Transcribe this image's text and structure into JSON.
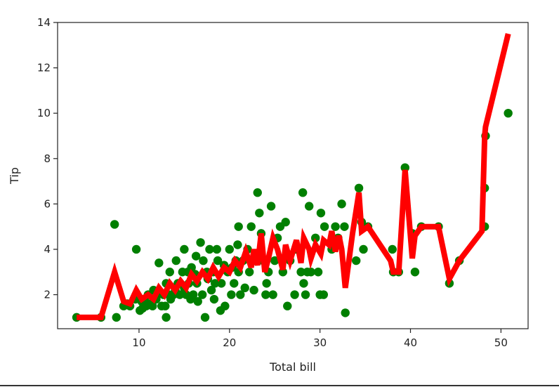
{
  "chart_data": {
    "type": "scatter",
    "xlabel": "Total bill",
    "ylabel": "Tip",
    "xlim": [
      1.0,
      53.0
    ],
    "ylim": [
      0.5,
      14.0
    ],
    "xticks": [
      10,
      20,
      30,
      40,
      50
    ],
    "yticks": [
      2,
      4,
      6,
      8,
      10,
      12,
      14
    ],
    "grid": false,
    "colors": {
      "points": "#007f00",
      "line": "#ff0000",
      "axes": "#222222"
    },
    "series": [
      {
        "type": "scatter",
        "points": [
          [
            3.1,
            1.0
          ],
          [
            5.8,
            1.0
          ],
          [
            7.3,
            5.1
          ],
          [
            7.5,
            1.0
          ],
          [
            8.3,
            1.5
          ],
          [
            8.7,
            1.6
          ],
          [
            9.0,
            1.5
          ],
          [
            9.6,
            1.8
          ],
          [
            9.7,
            4.0
          ],
          [
            10.1,
            1.3
          ],
          [
            10.3,
            1.7
          ],
          [
            10.4,
            1.4
          ],
          [
            10.6,
            1.8
          ],
          [
            10.8,
            1.5
          ],
          [
            11.0,
            2.0
          ],
          [
            11.2,
            1.6
          ],
          [
            11.5,
            1.5
          ],
          [
            11.6,
            2.2
          ],
          [
            11.9,
            1.8
          ],
          [
            12.0,
            2.0
          ],
          [
            12.2,
            3.4
          ],
          [
            12.5,
            1.5
          ],
          [
            12.7,
            2.0
          ],
          [
            12.9,
            1.5
          ],
          [
            13.0,
            1.0
          ],
          [
            13.0,
            2.5
          ],
          [
            13.3,
            2.0
          ],
          [
            13.4,
            3.0
          ],
          [
            13.5,
            1.8
          ],
          [
            13.8,
            2.0
          ],
          [
            14.0,
            2.2
          ],
          [
            14.1,
            3.5
          ],
          [
            14.3,
            2.5
          ],
          [
            14.5,
            2.0
          ],
          [
            14.8,
            3.0
          ],
          [
            15.0,
            2.3
          ],
          [
            15.0,
            4.0
          ],
          [
            15.2,
            2.0
          ],
          [
            15.4,
            3.0
          ],
          [
            15.5,
            2.5
          ],
          [
            15.7,
            1.8
          ],
          [
            15.8,
            3.2
          ],
          [
            16.0,
            2.0
          ],
          [
            16.2,
            2.9
          ],
          [
            16.3,
            3.7
          ],
          [
            16.4,
            2.5
          ],
          [
            16.5,
            1.7
          ],
          [
            16.8,
            4.3
          ],
          [
            17.0,
            2.0
          ],
          [
            17.1,
            3.5
          ],
          [
            17.3,
            1.0
          ],
          [
            17.5,
            3.0
          ],
          [
            17.6,
            2.7
          ],
          [
            17.8,
            4.0
          ],
          [
            18.0,
            2.2
          ],
          [
            18.2,
            3.0
          ],
          [
            18.3,
            1.8
          ],
          [
            18.4,
            2.5
          ],
          [
            18.6,
            4.0
          ],
          [
            18.7,
            3.5
          ],
          [
            19.0,
            1.3
          ],
          [
            19.1,
            2.5
          ],
          [
            19.4,
            3.3
          ],
          [
            19.5,
            1.5
          ],
          [
            19.8,
            3.0
          ],
          [
            20.0,
            4.0
          ],
          [
            20.2,
            2.0
          ],
          [
            20.3,
            3.2
          ],
          [
            20.5,
            2.5
          ],
          [
            20.7,
            3.5
          ],
          [
            20.9,
            4.2
          ],
          [
            21.0,
            5.0
          ],
          [
            21.0,
            3.0
          ],
          [
            21.2,
            2.0
          ],
          [
            21.5,
            3.5
          ],
          [
            21.7,
            2.3
          ],
          [
            22.0,
            4.0
          ],
          [
            22.2,
            3.0
          ],
          [
            22.4,
            5.0
          ],
          [
            22.7,
            2.2
          ],
          [
            22.8,
            3.5
          ],
          [
            23.1,
            6.5
          ],
          [
            23.3,
            5.6
          ],
          [
            23.5,
            4.7
          ],
          [
            23.7,
            3.5
          ],
          [
            24.0,
            2.0
          ],
          [
            24.1,
            2.5
          ],
          [
            24.3,
            3.0
          ],
          [
            24.6,
            5.9
          ],
          [
            24.8,
            2.0
          ],
          [
            25.0,
            3.5
          ],
          [
            25.3,
            4.5
          ],
          [
            25.6,
            5.0
          ],
          [
            25.9,
            3.0
          ],
          [
            26.2,
            5.2
          ],
          [
            26.4,
            1.5
          ],
          [
            26.7,
            3.5
          ],
          [
            27.2,
            2.0
          ],
          [
            27.4,
            4.0
          ],
          [
            27.9,
            3.0
          ],
          [
            28.1,
            6.5
          ],
          [
            28.2,
            2.5
          ],
          [
            28.4,
            2.0
          ],
          [
            28.6,
            3.0
          ],
          [
            28.8,
            5.9
          ],
          [
            29.0,
            3.0
          ],
          [
            29.5,
            4.5
          ],
          [
            29.8,
            3.0
          ],
          [
            30.0,
            2.0
          ],
          [
            30.1,
            5.6
          ],
          [
            30.4,
            2.0
          ],
          [
            30.5,
            5.0
          ],
          [
            31.3,
            4.0
          ],
          [
            31.7,
            5.0
          ],
          [
            32.0,
            4.5
          ],
          [
            32.4,
            6.0
          ],
          [
            32.7,
            5.0
          ],
          [
            32.8,
            1.2
          ],
          [
            34.0,
            3.5
          ],
          [
            34.3,
            6.7
          ],
          [
            34.6,
            5.2
          ],
          [
            34.8,
            4.0
          ],
          [
            35.3,
            5.0
          ],
          [
            38.0,
            4.0
          ],
          [
            38.1,
            3.0
          ],
          [
            38.7,
            3.0
          ],
          [
            39.4,
            7.6
          ],
          [
            40.2,
            4.7
          ],
          [
            40.5,
            3.0
          ],
          [
            41.2,
            5.0
          ],
          [
            43.1,
            5.0
          ],
          [
            44.3,
            2.5
          ],
          [
            45.4,
            3.5
          ],
          [
            48.2,
            5.0
          ],
          [
            48.2,
            6.7
          ],
          [
            48.3,
            9.0
          ],
          [
            50.8,
            10.0
          ]
        ]
      },
      {
        "type": "line",
        "x": [
          3.1,
          5.8,
          7.3,
          8.3,
          9.0,
          9.7,
          10.3,
          11.0,
          11.6,
          12.2,
          12.8,
          13.4,
          14.0,
          14.6,
          15.2,
          15.8,
          16.4,
          17.0,
          17.6,
          18.2,
          18.8,
          19.4,
          20.0,
          20.6,
          21.2,
          21.8,
          22.4,
          22.7,
          23.1,
          23.5,
          23.9,
          24.3,
          24.8,
          25.3,
          25.9,
          26.2,
          26.7,
          27.4,
          27.9,
          28.2,
          28.8,
          29.0,
          29.5,
          30.1,
          30.4,
          31.0,
          31.3,
          31.7,
          32.1,
          32.4,
          32.8,
          33.6,
          34.3,
          34.6,
          35.3,
          37.8,
          38.1,
          38.7,
          39.4,
          40.2,
          40.5,
          41.2,
          43.1,
          44.3,
          45.4,
          47.9,
          48.2,
          48.3,
          50.8
        ],
        "y": [
          1.0,
          1.0,
          3.0,
          1.7,
          1.6,
          2.2,
          1.8,
          2.0,
          1.8,
          2.3,
          2.0,
          2.5,
          2.2,
          2.6,
          2.3,
          2.9,
          2.6,
          3.0,
          2.7,
          3.2,
          2.8,
          3.2,
          3.0,
          3.5,
          3.2,
          3.9,
          3.2,
          4.0,
          3.3,
          4.7,
          3.0,
          3.6,
          4.5,
          4.0,
          3.1,
          4.2,
          3.5,
          4.4,
          3.4,
          4.5,
          4.0,
          3.6,
          4.2,
          3.8,
          4.4,
          4.2,
          4.8,
          3.9,
          4.6,
          4.0,
          2.3,
          4.7,
          6.5,
          4.8,
          5.0,
          3.5,
          3.0,
          3.0,
          7.5,
          3.6,
          4.6,
          5.0,
          5.0,
          2.7,
          3.5,
          4.8,
          9.0,
          9.4,
          13.5
        ]
      }
    ]
  }
}
